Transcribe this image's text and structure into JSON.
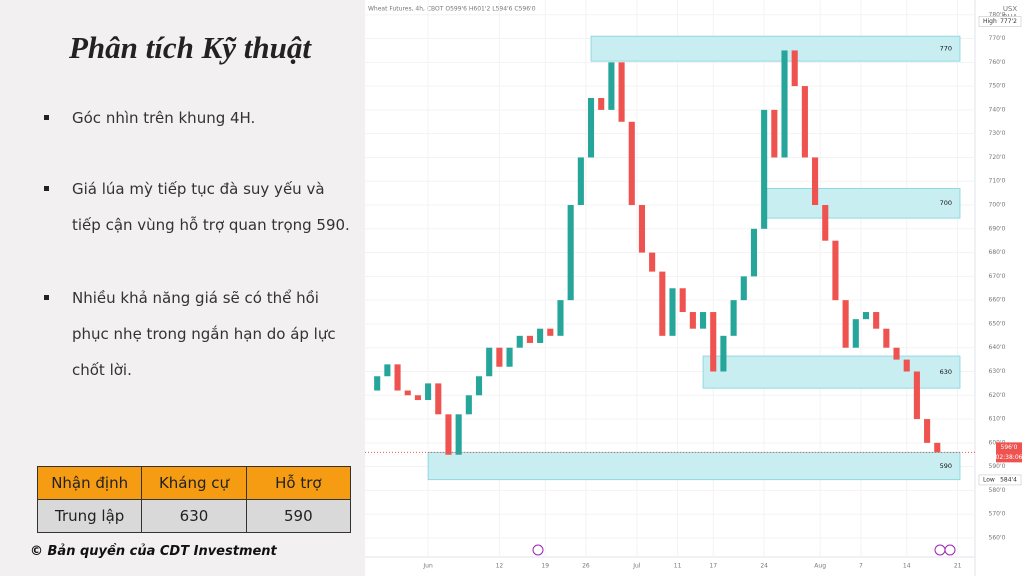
{
  "title": "Phân tích Kỹ thuật",
  "bullets": [
    "Góc nhìn trên khung 4H.",
    "Giá lúa mỳ tiếp tục đà suy yếu và tiếp cận vùng hỗ trợ quan trọng 590.",
    "Nhiều khả năng giá sẽ có thể hồi phục nhẹ trong ngắn hạn do áp lực chốt lời."
  ],
  "table": {
    "header": [
      "Nhận định",
      "Kháng cự",
      "Hỗ trợ"
    ],
    "rows": [
      [
        "Trung lập",
        "630",
        "590"
      ]
    ]
  },
  "copyright": "© Bản quyền của CDT Investment",
  "chart_data": {
    "type": "candlestick",
    "header": "Wheat Futures, 4h, CBOT  O599'6 H601'2 L594'6 C596'0",
    "currency": "USX",
    "exchange": "BUA",
    "up_color": "#26a69a",
    "down_color": "#ef5350",
    "zone_color": "#c9eef2",
    "xlim": [
      0,
      60
    ],
    "ylim": [
      552,
      782
    ],
    "x_labels": [
      {
        "value": 6,
        "label": "Jun"
      },
      {
        "value": 13,
        "label": "12"
      },
      {
        "value": 17.5,
        "label": "19"
      },
      {
        "value": 21.5,
        "label": "26"
      },
      {
        "value": 26.5,
        "label": "Jul"
      },
      {
        "value": 30.5,
        "label": "11"
      },
      {
        "value": 34,
        "label": "17"
      },
      {
        "value": 39,
        "label": "24"
      },
      {
        "value": 44.5,
        "label": "Aug"
      },
      {
        "value": 48.5,
        "label": "7"
      },
      {
        "value": 53,
        "label": "14"
      },
      {
        "value": 58,
        "label": "21"
      }
    ],
    "yticks": [
      {
        "value": 560,
        "label": "560'0"
      },
      {
        "value": 570,
        "label": "570'0"
      },
      {
        "value": 580,
        "label": "580'0"
      },
      {
        "value": 590,
        "label": "590'0"
      },
      {
        "value": 600,
        "label": "600'0"
      },
      {
        "value": 610,
        "label": "610'0"
      },
      {
        "value": 620,
        "label": "620'0"
      },
      {
        "value": 630,
        "label": "630'0"
      },
      {
        "value": 640,
        "label": "640'0"
      },
      {
        "value": 650,
        "label": "650'0"
      },
      {
        "value": 660,
        "label": "660'0"
      },
      {
        "value": 670,
        "label": "670'0"
      },
      {
        "value": 680,
        "label": "680'0"
      },
      {
        "value": 690,
        "label": "690'0"
      },
      {
        "value": 700,
        "label": "700'0"
      },
      {
        "value": 710,
        "label": "710'0"
      },
      {
        "value": 720,
        "label": "720'0"
      },
      {
        "value": 730,
        "label": "730'0"
      },
      {
        "value": 740,
        "label": "740'0"
      },
      {
        "value": 750,
        "label": "750'0"
      },
      {
        "value": 760,
        "label": "760'0"
      },
      {
        "value": 770,
        "label": "770'0"
      },
      {
        "value": 780,
        "label": "780'0"
      }
    ],
    "series": [
      {
        "name": "Wheat Futures",
        "values": [
          622,
          628,
          633,
          622,
          620,
          618,
          625,
          612,
          595,
          612,
          620,
          628,
          640,
          632,
          640,
          645,
          642,
          648,
          645,
          660,
          700,
          720,
          745,
          740,
          760,
          735,
          700,
          680,
          672,
          645,
          665,
          655,
          648,
          655,
          630,
          645,
          660,
          670,
          690,
          740,
          720,
          765,
          750,
          720,
          700,
          685,
          660,
          640,
          652,
          655,
          648,
          640,
          635,
          630,
          610,
          600,
          596
        ]
      }
    ],
    "zones": [
      {
        "label": 770,
        "high": 771,
        "low": 760.5,
        "from": 22
      },
      {
        "label": 700,
        "high": 707,
        "low": 694.5,
        "from": 39
      },
      {
        "label": 630,
        "high": 636.5,
        "low": 623,
        "from": 33
      },
      {
        "label": 590,
        "high": 596,
        "low": 584.5,
        "from": 6
      }
    ],
    "last_price": {
      "value": 596,
      "label": "596'0",
      "countdown": "02:38:06"
    },
    "high_tag": {
      "name": "High",
      "value": 777.2,
      "label": "777'2"
    },
    "low_tag": {
      "name": "Low",
      "value": 584.4,
      "label": "584'4"
    }
  }
}
